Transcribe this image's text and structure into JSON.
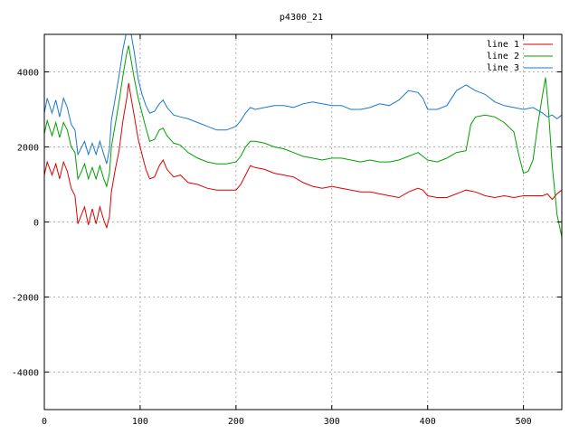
{
  "chart_data": {
    "type": "line",
    "title": "p4300_21",
    "xlabel": "",
    "ylabel": "",
    "xlim": [
      0,
      540
    ],
    "ylim": [
      -5000,
      5000
    ],
    "x_ticks": [
      0,
      100,
      200,
      300,
      400,
      500
    ],
    "y_ticks": [
      -4000,
      -2000,
      0,
      2000,
      4000
    ],
    "grid": true,
    "legend_position": "top-right",
    "series": [
      {
        "name": "line 1",
        "color": "#e00000",
        "points": [
          [
            0,
            1250
          ],
          [
            3,
            1600
          ],
          [
            8,
            1250
          ],
          [
            12,
            1550
          ],
          [
            16,
            1150
          ],
          [
            20,
            1600
          ],
          [
            24,
            1350
          ],
          [
            28,
            900
          ],
          [
            32,
            700
          ],
          [
            35,
            -50
          ],
          [
            38,
            150
          ],
          [
            42,
            400
          ],
          [
            46,
            -80
          ],
          [
            50,
            350
          ],
          [
            54,
            -50
          ],
          [
            58,
            400
          ],
          [
            62,
            50
          ],
          [
            65,
            -150
          ],
          [
            68,
            150
          ],
          [
            70,
            800
          ],
          [
            74,
            1400
          ],
          [
            78,
            1900
          ],
          [
            82,
            2700
          ],
          [
            86,
            3300
          ],
          [
            88,
            3700
          ],
          [
            90,
            3400
          ],
          [
            94,
            2800
          ],
          [
            98,
            2200
          ],
          [
            102,
            1800
          ],
          [
            106,
            1400
          ],
          [
            110,
            1150
          ],
          [
            115,
            1200
          ],
          [
            120,
            1500
          ],
          [
            124,
            1650
          ],
          [
            128,
            1400
          ],
          [
            135,
            1200
          ],
          [
            142,
            1250
          ],
          [
            150,
            1050
          ],
          [
            160,
            1000
          ],
          [
            170,
            900
          ],
          [
            180,
            850
          ],
          [
            190,
            850
          ],
          [
            200,
            850
          ],
          [
            205,
            1000
          ],
          [
            210,
            1250
          ],
          [
            215,
            1500
          ],
          [
            220,
            1450
          ],
          [
            230,
            1400
          ],
          [
            240,
            1300
          ],
          [
            250,
            1250
          ],
          [
            260,
            1200
          ],
          [
            270,
            1050
          ],
          [
            280,
            950
          ],
          [
            290,
            900
          ],
          [
            300,
            950
          ],
          [
            310,
            900
          ],
          [
            320,
            850
          ],
          [
            330,
            800
          ],
          [
            340,
            800
          ],
          [
            350,
            750
          ],
          [
            360,
            700
          ],
          [
            370,
            650
          ],
          [
            380,
            800
          ],
          [
            390,
            900
          ],
          [
            395,
            850
          ],
          [
            400,
            700
          ],
          [
            410,
            650
          ],
          [
            420,
            650
          ],
          [
            430,
            750
          ],
          [
            440,
            850
          ],
          [
            450,
            800
          ],
          [
            460,
            700
          ],
          [
            470,
            650
          ],
          [
            480,
            700
          ],
          [
            490,
            650
          ],
          [
            500,
            700
          ],
          [
            510,
            700
          ],
          [
            520,
            700
          ],
          [
            525,
            750
          ],
          [
            530,
            600
          ],
          [
            535,
            750
          ],
          [
            540,
            850
          ]
        ]
      },
      {
        "name": "line 2",
        "color": "#00a000",
        "points": [
          [
            0,
            2350
          ],
          [
            3,
            2700
          ],
          [
            8,
            2300
          ],
          [
            12,
            2650
          ],
          [
            16,
            2250
          ],
          [
            20,
            2650
          ],
          [
            24,
            2450
          ],
          [
            28,
            2000
          ],
          [
            32,
            1850
          ],
          [
            35,
            1150
          ],
          [
            38,
            1300
          ],
          [
            42,
            1550
          ],
          [
            46,
            1150
          ],
          [
            50,
            1450
          ],
          [
            54,
            1150
          ],
          [
            58,
            1500
          ],
          [
            62,
            1150
          ],
          [
            65,
            950
          ],
          [
            68,
            1300
          ],
          [
            70,
            2000
          ],
          [
            74,
            2600
          ],
          [
            78,
            3200
          ],
          [
            82,
            3900
          ],
          [
            86,
            4500
          ],
          [
            88,
            4700
          ],
          [
            90,
            4400
          ],
          [
            94,
            3800
          ],
          [
            98,
            3300
          ],
          [
            102,
            2900
          ],
          [
            106,
            2500
          ],
          [
            110,
            2150
          ],
          [
            115,
            2200
          ],
          [
            120,
            2450
          ],
          [
            124,
            2500
          ],
          [
            128,
            2300
          ],
          [
            135,
            2100
          ],
          [
            142,
            2050
          ],
          [
            150,
            1850
          ],
          [
            160,
            1700
          ],
          [
            170,
            1600
          ],
          [
            180,
            1550
          ],
          [
            190,
            1550
          ],
          [
            200,
            1600
          ],
          [
            205,
            1750
          ],
          [
            210,
            2000
          ],
          [
            215,
            2150
          ],
          [
            220,
            2150
          ],
          [
            230,
            2100
          ],
          [
            240,
            2000
          ],
          [
            250,
            1950
          ],
          [
            260,
            1850
          ],
          [
            270,
            1750
          ],
          [
            280,
            1700
          ],
          [
            290,
            1650
          ],
          [
            300,
            1700
          ],
          [
            310,
            1700
          ],
          [
            320,
            1650
          ],
          [
            330,
            1600
          ],
          [
            340,
            1650
          ],
          [
            350,
            1600
          ],
          [
            360,
            1600
          ],
          [
            370,
            1650
          ],
          [
            380,
            1750
          ],
          [
            390,
            1850
          ],
          [
            395,
            1750
          ],
          [
            400,
            1650
          ],
          [
            410,
            1600
          ],
          [
            420,
            1700
          ],
          [
            430,
            1850
          ],
          [
            440,
            1900
          ],
          [
            445,
            2600
          ],
          [
            450,
            2800
          ],
          [
            460,
            2850
          ],
          [
            470,
            2800
          ],
          [
            480,
            2650
          ],
          [
            490,
            2400
          ],
          [
            495,
            1800
          ],
          [
            500,
            1300
          ],
          [
            505,
            1350
          ],
          [
            510,
            1650
          ],
          [
            515,
            2600
          ],
          [
            520,
            3400
          ],
          [
            523,
            3850
          ],
          [
            526,
            3000
          ],
          [
            530,
            1500
          ],
          [
            535,
            200
          ],
          [
            540,
            -400
          ]
        ]
      },
      {
        "name": "line 3",
        "color": "#1a78d0",
        "points": [
          [
            0,
            2900
          ],
          [
            3,
            3300
          ],
          [
            8,
            2900
          ],
          [
            12,
            3250
          ],
          [
            16,
            2800
          ],
          [
            20,
            3300
          ],
          [
            24,
            3050
          ],
          [
            28,
            2600
          ],
          [
            32,
            2450
          ],
          [
            35,
            1800
          ],
          [
            38,
            1950
          ],
          [
            42,
            2150
          ],
          [
            46,
            1800
          ],
          [
            50,
            2100
          ],
          [
            54,
            1800
          ],
          [
            58,
            2150
          ],
          [
            62,
            1800
          ],
          [
            65,
            1550
          ],
          [
            68,
            1950
          ],
          [
            70,
            2700
          ],
          [
            74,
            3300
          ],
          [
            78,
            3900
          ],
          [
            82,
            4600
          ],
          [
            86,
            5100
          ],
          [
            88,
            5400
          ],
          [
            90,
            5100
          ],
          [
            94,
            4500
          ],
          [
            98,
            3800
          ],
          [
            102,
            3400
          ],
          [
            106,
            3100
          ],
          [
            110,
            2900
          ],
          [
            115,
            2950
          ],
          [
            120,
            3150
          ],
          [
            124,
            3250
          ],
          [
            128,
            3050
          ],
          [
            135,
            2850
          ],
          [
            142,
            2800
          ],
          [
            150,
            2750
          ],
          [
            160,
            2650
          ],
          [
            170,
            2550
          ],
          [
            180,
            2450
          ],
          [
            190,
            2450
          ],
          [
            200,
            2550
          ],
          [
            205,
            2700
          ],
          [
            210,
            2900
          ],
          [
            215,
            3050
          ],
          [
            220,
            3000
          ],
          [
            230,
            3050
          ],
          [
            240,
            3100
          ],
          [
            250,
            3100
          ],
          [
            260,
            3050
          ],
          [
            270,
            3150
          ],
          [
            280,
            3200
          ],
          [
            290,
            3150
          ],
          [
            300,
            3100
          ],
          [
            310,
            3100
          ],
          [
            320,
            3000
          ],
          [
            330,
            3000
          ],
          [
            340,
            3050
          ],
          [
            350,
            3150
          ],
          [
            360,
            3100
          ],
          [
            370,
            3250
          ],
          [
            380,
            3500
          ],
          [
            390,
            3450
          ],
          [
            395,
            3300
          ],
          [
            400,
            3000
          ],
          [
            410,
            3000
          ],
          [
            420,
            3100
          ],
          [
            430,
            3500
          ],
          [
            440,
            3650
          ],
          [
            450,
            3500
          ],
          [
            460,
            3400
          ],
          [
            470,
            3200
          ],
          [
            480,
            3100
          ],
          [
            490,
            3050
          ],
          [
            500,
            3000
          ],
          [
            510,
            3050
          ],
          [
            520,
            2900
          ],
          [
            525,
            2800
          ],
          [
            530,
            2850
          ],
          [
            535,
            2750
          ],
          [
            540,
            2850
          ]
        ]
      }
    ]
  }
}
